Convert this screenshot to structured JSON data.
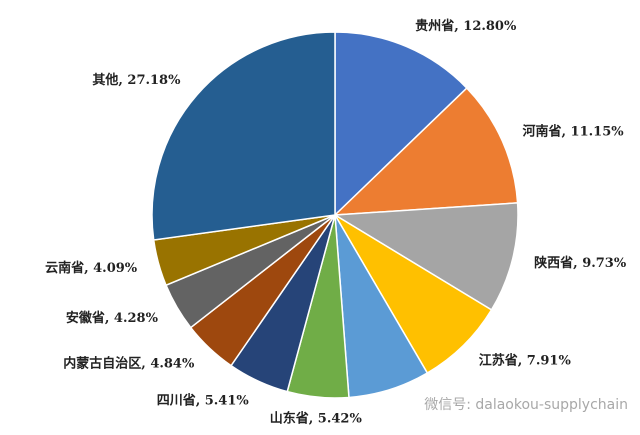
{
  "chart_data": {
    "type": "pie",
    "labels": [
      "贵州省, 12.80%",
      "河南省, 11.15%",
      "陕西省, 9.73%",
      "江苏省, 7.91%",
      null,
      "山东省, 5.42%",
      "四川省, 5.41%",
      "内蒙古自治区, 4.84%",
      "安徽省, 4.28%",
      "云南省, 4.09%",
      "其他, 27.18%"
    ],
    "values": [
      12.8,
      11.15,
      9.73,
      7.91,
      7.2,
      5.42,
      5.41,
      4.84,
      4.28,
      4.09,
      27.18
    ],
    "colors": [
      "#4472c4",
      "#ed7d31",
      "#a5a5a5",
      "#ffc000",
      "#5b9bd5",
      "#70ad47",
      "#264478",
      "#9e480e",
      "#636363",
      "#997300",
      "#255e91"
    ],
    "watermark": "微信号: dalaokou-supplychain"
  }
}
